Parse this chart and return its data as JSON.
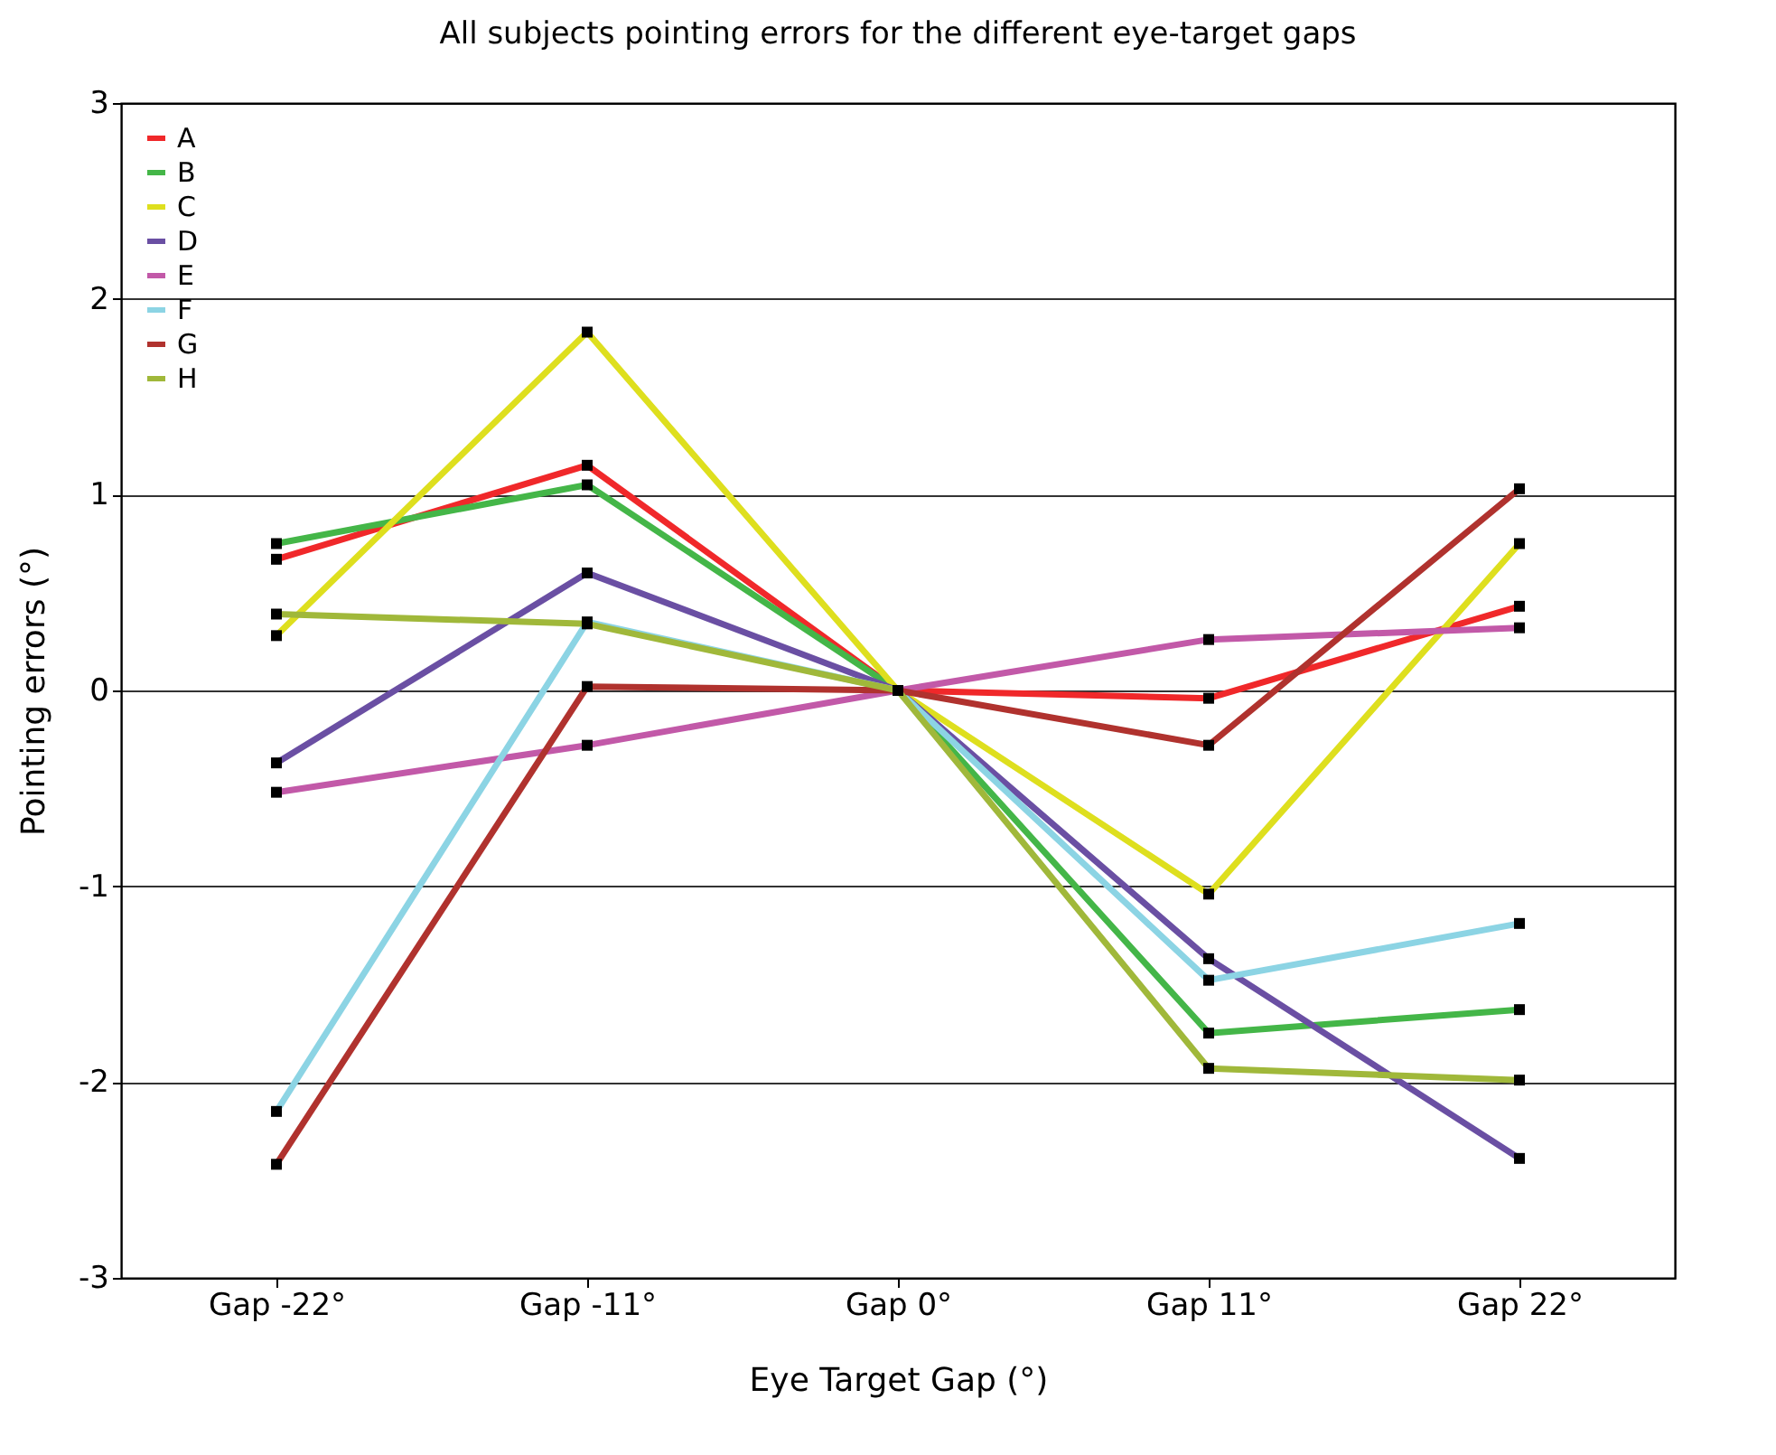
{
  "chart_data": {
    "type": "line",
    "title": "All subjects pointing errors for the different eye-target gaps",
    "xlabel": "Eye Target Gap (°)",
    "ylabel": "Pointing errors (°)",
    "categories": [
      "Gap -22°",
      "Gap -11°",
      "Gap 0°",
      "Gap 11°",
      "Gap 22°"
    ],
    "ylim": [
      -3,
      3
    ],
    "yticks": [
      -3,
      -2,
      -1,
      0,
      1,
      2,
      3
    ],
    "grid": "y",
    "legend": "top left",
    "marker": "square",
    "line_style": "solid",
    "series": [
      {
        "name": "A",
        "color": "#f0282a",
        "values": [
          0.67,
          1.15,
          0,
          -0.04,
          0.43
        ]
      },
      {
        "name": "B",
        "color": "#44b648",
        "values": [
          0.75,
          1.05,
          0,
          -1.75,
          -1.63
        ]
      },
      {
        "name": "C",
        "color": "#dedf1e",
        "values": [
          0.28,
          1.83,
          0,
          -1.04,
          0.75
        ]
      },
      {
        "name": "D",
        "color": "#6a4fa3",
        "values": [
          -0.37,
          0.6,
          0,
          -1.37,
          -2.39
        ]
      },
      {
        "name": "E",
        "color": "#c259a8",
        "values": [
          -0.52,
          -0.28,
          0,
          0.26,
          0.32
        ]
      },
      {
        "name": "F",
        "color": "#8cd4e4",
        "values": [
          -2.15,
          0.35,
          0,
          -1.48,
          -1.19
        ]
      },
      {
        "name": "G",
        "color": "#b0322e",
        "values": [
          -2.42,
          0.02,
          0,
          -0.28,
          1.03
        ]
      },
      {
        "name": "H",
        "color": "#a0b83a",
        "values": [
          0.39,
          0.34,
          0,
          -1.93,
          -1.99
        ]
      }
    ]
  }
}
